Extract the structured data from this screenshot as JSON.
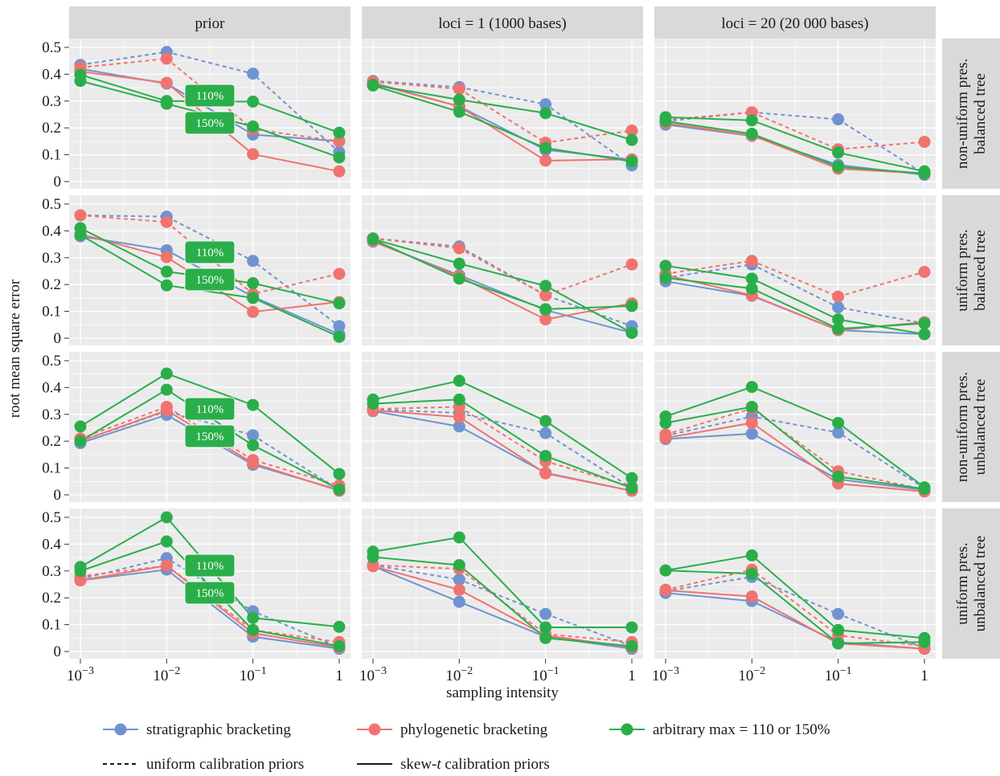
{
  "chart_data": {
    "type": "line",
    "xlabel": "sampling intensity",
    "ylabel": "root mean square error",
    "x_tick_labels": [
      {
        "base": "10",
        "exp": "−3"
      },
      {
        "base": "10",
        "exp": "−2"
      },
      {
        "base": "10",
        "exp": "−1"
      },
      {
        "base": "1",
        "exp": ""
      }
    ],
    "x": [
      0.001,
      0.01,
      0.1,
      1
    ],
    "x_scale": "log",
    "y_ticks": [
      "0.5",
      "0.4",
      "0.3",
      "0.2",
      "0.1",
      "0"
    ],
    "ylim": [
      0,
      0.5
    ],
    "grid": true,
    "columns": [
      "prior",
      "loci = 1 (1000 bases)",
      "loci = 20 (20 000 bases)"
    ],
    "rows": [
      [
        "non-uniform pres.",
        "balanced tree"
      ],
      [
        "uniform pres.",
        "balanced tree"
      ],
      [
        "non-uniform pres.",
        "unbalanced tree"
      ],
      [
        "uniform pres.",
        "unbalanced tree"
      ]
    ],
    "badges": [
      "110%",
      "150%"
    ],
    "colors": {
      "strat": "#6f93d1",
      "phylo": "#f0736f",
      "arb": "#2aae4a"
    },
    "legend": {
      "position": "bottom",
      "items": [
        {
          "key": "strat",
          "label": "stratigraphic bracketing"
        },
        {
          "key": "phylo",
          "label": "phylogenetic bracketing"
        },
        {
          "key": "arb",
          "label": "arbitrary max = 110 or 150%"
        }
      ],
      "line_items": [
        {
          "style": "dashed",
          "label": "uniform calibration priors"
        },
        {
          "style": "solid",
          "label_pre": "skew-",
          "label_it": "t",
          "label_post": " calibration priors"
        }
      ]
    },
    "panels": [
      [
        {
          "series": [
            {
              "method": "strat",
              "prior": "uniform",
              "values": [
                0.435,
                0.483,
                0.402,
                0.11
              ]
            },
            {
              "method": "strat",
              "prior": "skew-t",
              "values": [
                0.42,
                0.365,
                0.175,
                0.15
              ]
            },
            {
              "method": "phylo",
              "prior": "uniform",
              "values": [
                0.425,
                0.458,
                0.195,
                0.15
              ]
            },
            {
              "method": "phylo",
              "prior": "skew-t",
              "values": [
                0.41,
                0.368,
                0.102,
                0.038
              ]
            },
            {
              "method": "arb",
              "prior": "skew-t",
              "values": [
                0.398,
                0.3,
                0.298,
                0.182
              ]
            },
            {
              "method": "arb",
              "prior": "skew-t",
              "values": [
                0.375,
                0.29,
                0.205,
                0.09
              ]
            }
          ]
        },
        {
          "series": [
            {
              "method": "strat",
              "prior": "uniform",
              "values": [
                0.375,
                0.352,
                0.288,
                0.06
              ]
            },
            {
              "method": "strat",
              "prior": "skew-t",
              "values": [
                0.368,
                0.28,
                0.118,
                0.082
              ]
            },
            {
              "method": "phylo",
              "prior": "uniform",
              "values": [
                0.372,
                0.345,
                0.145,
                0.19
              ]
            },
            {
              "method": "phylo",
              "prior": "skew-t",
              "values": [
                0.365,
                0.28,
                0.078,
                0.083
              ]
            },
            {
              "method": "arb",
              "prior": "skew-t",
              "values": [
                0.36,
                0.305,
                0.255,
                0.155
              ]
            },
            {
              "method": "arb",
              "prior": "skew-t",
              "values": [
                0.358,
                0.26,
                0.125,
                0.075
              ]
            }
          ]
        },
        {
          "series": [
            {
              "method": "strat",
              "prior": "uniform",
              "values": [
                0.225,
                0.258,
                0.232,
                0.028
              ]
            },
            {
              "method": "strat",
              "prior": "skew-t",
              "values": [
                0.212,
                0.17,
                0.062,
                0.025
              ]
            },
            {
              "method": "phylo",
              "prior": "uniform",
              "values": [
                0.23,
                0.258,
                0.12,
                0.148
              ]
            },
            {
              "method": "phylo",
              "prior": "skew-t",
              "values": [
                0.218,
                0.172,
                0.048,
                0.03
              ]
            },
            {
              "method": "arb",
              "prior": "skew-t",
              "values": [
                0.24,
                0.228,
                0.108,
                0.038
              ]
            },
            {
              "method": "arb",
              "prior": "skew-t",
              "values": [
                0.225,
                0.178,
                0.055,
                0.03
              ]
            }
          ]
        }
      ],
      [
        {
          "series": [
            {
              "method": "strat",
              "prior": "uniform",
              "values": [
                0.458,
                0.453,
                0.288,
                0.045
              ]
            },
            {
              "method": "strat",
              "prior": "skew-t",
              "values": [
                0.38,
                0.328,
                0.155,
                0.015
              ]
            },
            {
              "method": "phylo",
              "prior": "uniform",
              "values": [
                0.458,
                0.433,
                0.165,
                0.24
              ]
            },
            {
              "method": "phylo",
              "prior": "skew-t",
              "values": [
                0.388,
                0.302,
                0.098,
                0.135
              ]
            },
            {
              "method": "arb",
              "prior": "skew-t",
              "values": [
                0.41,
                0.248,
                0.205,
                0.13
              ]
            },
            {
              "method": "arb",
              "prior": "skew-t",
              "values": [
                0.385,
                0.197,
                0.15,
                0.005
              ]
            }
          ]
        },
        {
          "series": [
            {
              "method": "strat",
              "prior": "uniform",
              "values": [
                0.372,
                0.342,
                0.16,
                0.045
              ]
            },
            {
              "method": "strat",
              "prior": "skew-t",
              "values": [
                0.36,
                0.235,
                0.105,
                0.02
              ]
            },
            {
              "method": "phylo",
              "prior": "uniform",
              "values": [
                0.372,
                0.335,
                0.16,
                0.275
              ]
            },
            {
              "method": "phylo",
              "prior": "skew-t",
              "values": [
                0.362,
                0.23,
                0.07,
                0.13
              ]
            },
            {
              "method": "arb",
              "prior": "skew-t",
              "values": [
                0.37,
                0.278,
                0.195,
                0.02
              ]
            },
            {
              "method": "arb",
              "prior": "skew-t",
              "values": [
                0.368,
                0.222,
                0.108,
                0.12
              ]
            }
          ]
        },
        {
          "series": [
            {
              "method": "strat",
              "prior": "uniform",
              "values": [
                0.225,
                0.275,
                0.115,
                0.055
              ]
            },
            {
              "method": "strat",
              "prior": "skew-t",
              "values": [
                0.212,
                0.158,
                0.03,
                0.015
              ]
            },
            {
              "method": "phylo",
              "prior": "uniform",
              "values": [
                0.24,
                0.288,
                0.155,
                0.247
              ]
            },
            {
              "method": "phylo",
              "prior": "skew-t",
              "values": [
                0.235,
                0.16,
                0.03,
                0.06
              ]
            },
            {
              "method": "arb",
              "prior": "skew-t",
              "values": [
                0.27,
                0.222,
                0.07,
                0.015
              ]
            },
            {
              "method": "arb",
              "prior": "skew-t",
              "values": [
                0.225,
                0.185,
                0.035,
                0.055
              ]
            }
          ]
        }
      ],
      [
        {
          "series": [
            {
              "method": "strat",
              "prior": "uniform",
              "values": [
                0.2,
                0.312,
                0.222,
                0.018
              ]
            },
            {
              "method": "strat",
              "prior": "skew-t",
              "values": [
                0.193,
                0.298,
                0.112,
                0.018
              ]
            },
            {
              "method": "phylo",
              "prior": "uniform",
              "values": [
                0.21,
                0.328,
                0.13,
                0.035
              ]
            },
            {
              "method": "phylo",
              "prior": "skew-t",
              "values": [
                0.2,
                0.315,
                0.118,
                0.015
              ]
            },
            {
              "method": "arb",
              "prior": "skew-t",
              "values": [
                0.255,
                0.452,
                0.335,
                0.078
              ]
            },
            {
              "method": "arb",
              "prior": "skew-t",
              "values": [
                0.2,
                0.392,
                0.185,
                0.02
              ]
            }
          ]
        },
        {
          "series": [
            {
              "method": "strat",
              "prior": "uniform",
              "values": [
                0.318,
                0.305,
                0.23,
                0.025
              ]
            },
            {
              "method": "strat",
              "prior": "skew-t",
              "values": [
                0.312,
                0.255,
                0.082,
                0.015
              ]
            },
            {
              "method": "phylo",
              "prior": "uniform",
              "values": [
                0.32,
                0.328,
                0.125,
                0.03
              ]
            },
            {
              "method": "phylo",
              "prior": "skew-t",
              "values": [
                0.315,
                0.29,
                0.08,
                0.015
              ]
            },
            {
              "method": "arb",
              "prior": "skew-t",
              "values": [
                0.355,
                0.425,
                0.275,
                0.062
              ]
            },
            {
              "method": "arb",
              "prior": "skew-t",
              "values": [
                0.34,
                0.355,
                0.145,
                0.025
              ]
            }
          ]
        },
        {
          "series": [
            {
              "method": "strat",
              "prior": "uniform",
              "values": [
                0.22,
                0.292,
                0.232,
                0.025
              ]
            },
            {
              "method": "strat",
              "prior": "skew-t",
              "values": [
                0.208,
                0.228,
                0.058,
                0.018
              ]
            },
            {
              "method": "phylo",
              "prior": "uniform",
              "values": [
                0.225,
                0.322,
                0.088,
                0.02
              ]
            },
            {
              "method": "phylo",
              "prior": "skew-t",
              "values": [
                0.212,
                0.268,
                0.042,
                0.012
              ]
            },
            {
              "method": "arb",
              "prior": "skew-t",
              "values": [
                0.292,
                0.402,
                0.268,
                0.028
              ]
            },
            {
              "method": "arb",
              "prior": "skew-t",
              "values": [
                0.268,
                0.328,
                0.068,
                0.022
              ]
            }
          ]
        }
      ],
      [
        {
          "series": [
            {
              "method": "strat",
              "prior": "uniform",
              "values": [
                0.27,
                0.348,
                0.15,
                0.015
              ]
            },
            {
              "method": "strat",
              "prior": "skew-t",
              "values": [
                0.265,
                0.305,
                0.055,
                0.01
              ]
            },
            {
              "method": "phylo",
              "prior": "uniform",
              "values": [
                0.28,
                0.32,
                0.08,
                0.035
              ]
            },
            {
              "method": "phylo",
              "prior": "skew-t",
              "values": [
                0.265,
                0.32,
                0.068,
                0.015
              ]
            },
            {
              "method": "arb",
              "prior": "skew-t",
              "values": [
                0.315,
                0.5,
                0.125,
                0.092
              ]
            },
            {
              "method": "arb",
              "prior": "skew-t",
              "values": [
                0.3,
                0.41,
                0.08,
                0.02
              ]
            }
          ]
        },
        {
          "series": [
            {
              "method": "strat",
              "prior": "uniform",
              "values": [
                0.322,
                0.268,
                0.14,
                0.02
              ]
            },
            {
              "method": "strat",
              "prior": "skew-t",
              "values": [
                0.318,
                0.185,
                0.055,
                0.01
              ]
            },
            {
              "method": "phylo",
              "prior": "uniform",
              "values": [
                0.322,
                0.308,
                0.065,
                0.035
              ]
            },
            {
              "method": "phylo",
              "prior": "skew-t",
              "values": [
                0.318,
                0.23,
                0.06,
                0.015
              ]
            },
            {
              "method": "arb",
              "prior": "skew-t",
              "values": [
                0.372,
                0.425,
                0.09,
                0.09
              ]
            },
            {
              "method": "arb",
              "prior": "skew-t",
              "values": [
                0.352,
                0.322,
                0.05,
                0.02
              ]
            }
          ]
        },
        {
          "series": [
            {
              "method": "strat",
              "prior": "uniform",
              "values": [
                0.225,
                0.278,
                0.14,
                0.012
              ]
            },
            {
              "method": "strat",
              "prior": "skew-t",
              "values": [
                0.218,
                0.188,
                0.035,
                0.01
              ]
            },
            {
              "method": "phylo",
              "prior": "uniform",
              "values": [
                0.23,
                0.305,
                0.06,
                0.02
              ]
            },
            {
              "method": "phylo",
              "prior": "skew-t",
              "values": [
                0.228,
                0.205,
                0.03,
                0.01
              ]
            },
            {
              "method": "arb",
              "prior": "skew-t",
              "values": [
                0.302,
                0.358,
                0.08,
                0.05
              ]
            },
            {
              "method": "arb",
              "prior": "skew-t",
              "values": [
                0.302,
                0.29,
                0.03,
                0.035
              ]
            }
          ]
        }
      ]
    ]
  }
}
